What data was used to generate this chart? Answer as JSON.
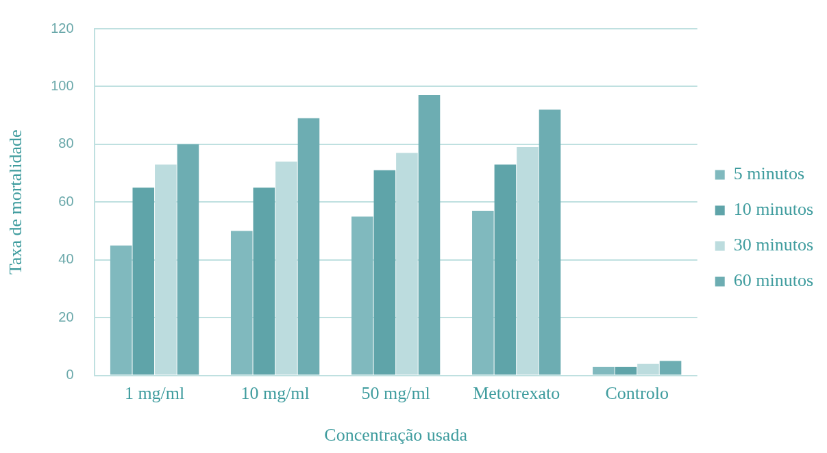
{
  "chart_data": {
    "type": "bar",
    "xlabel": "Concentração usada",
    "ylabel": "Taxa de mortalidade",
    "categories": [
      "1 mg/ml",
      "10 mg/ml",
      "50 mg/ml",
      "Metotrexato",
      "Controlo"
    ],
    "series": [
      {
        "name": "5 minutos",
        "color": "#80b9be",
        "values": [
          45,
          50,
          55,
          57,
          3
        ]
      },
      {
        "name": "10 minutos",
        "color": "#5fa4a9",
        "values": [
          65,
          65,
          71,
          73,
          3
        ]
      },
      {
        "name": "30 minutos",
        "color": "#bcdcde",
        "values": [
          73,
          74,
          77,
          79,
          4
        ]
      },
      {
        "name": "60 minutos",
        "color": "#6dadb2",
        "values": [
          80,
          89,
          97,
          92,
          5
        ]
      }
    ],
    "ylim": [
      0,
      120
    ],
    "yticks": [
      0,
      20,
      40,
      60,
      80,
      100,
      120
    ],
    "grid": "y",
    "legend": "right"
  }
}
